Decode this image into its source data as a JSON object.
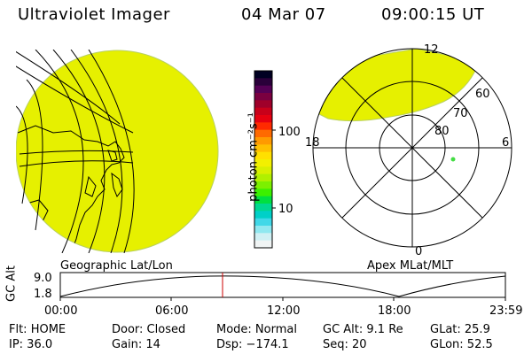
{
  "header": {
    "instrument": "Ultraviolet Imager",
    "date": "04 Mar 07",
    "time": "09:00:15 UT"
  },
  "colorbar": {
    "unit_label": "photon cm⁻²s⁻¹",
    "ticks": [
      "100",
      "10"
    ],
    "colors": [
      "#000022",
      "#2a003a",
      "#550055",
      "#7a0040",
      "#a0002a",
      "#c8001a",
      "#e60010",
      "#ff2a00",
      "#ff6a00",
      "#ff9a00",
      "#ffc000",
      "#ffe000",
      "#f2f000",
      "#d8f000",
      "#b0f000",
      "#7cf000",
      "#3cf000",
      "#00e040",
      "#00d890",
      "#00d0c8",
      "#40d8e8",
      "#90e8f0",
      "#d0f0f4",
      "#f0f4f4"
    ]
  },
  "left_panel": {
    "caption": "Geographic Lat/Lon",
    "fill_color": "#e6f000"
  },
  "right_panel": {
    "caption": "Apex MLat/MLT",
    "mlt_labels": {
      "top": "12",
      "bottom": "0",
      "left": "18",
      "right": "6"
    },
    "lat_labels": [
      "60",
      "70",
      "80"
    ],
    "fill_color": "#e6f000",
    "dot_color": "#44dd44"
  },
  "altitude_plot": {
    "ylabel": "GC Alt",
    "yticks": [
      "9.0",
      "1.8"
    ],
    "xticks": [
      "00:00",
      "06:00",
      "12:00",
      "18:00",
      "23:59"
    ],
    "marker_color": "#cc0000"
  },
  "info": {
    "rows": [
      [
        "Flt: HOME",
        "Door: Closed",
        "Mode: Normal",
        "GC Alt: 9.1 Re",
        "GLat:  25.9"
      ],
      [
        "IP: 36.0",
        "Gain: 14",
        "Dsp: −174.1",
        "Seq: 20",
        "GLon:  52.5"
      ]
    ]
  }
}
